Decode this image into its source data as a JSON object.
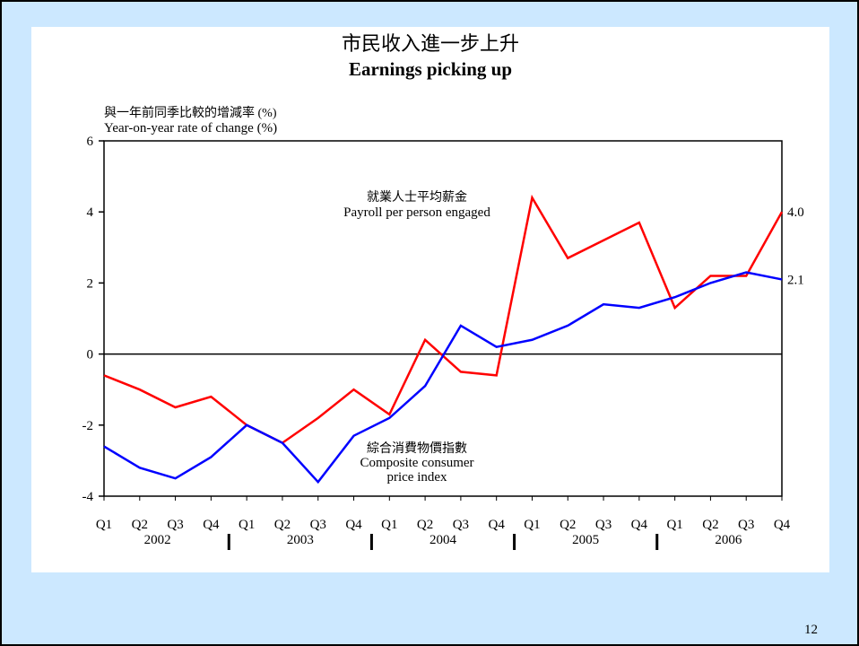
{
  "page_number": "12",
  "chart_data": {
    "type": "line",
    "title": "市民收入進一步上升",
    "subtitle": "Earnings picking up",
    "y_label_lines": [
      "與一年前同季比較的增減率  (%)",
      "Year-on-year rate of change (%)"
    ],
    "categories": [
      "Q1",
      "Q2",
      "Q3",
      "Q4",
      "Q1",
      "Q2",
      "Q3",
      "Q4",
      "Q1",
      "Q2",
      "Q3",
      "Q4",
      "Q1",
      "Q2",
      "Q3",
      "Q4",
      "Q1",
      "Q2",
      "Q3",
      "Q4"
    ],
    "years": [
      "2002",
      "2003",
      "2004",
      "2005",
      "2006"
    ],
    "ylim": [
      -4,
      6
    ],
    "yticks": [
      -4,
      -2,
      0,
      2,
      4,
      6
    ],
    "zero_line": 0,
    "series": [
      {
        "name_lines": [
          "就業人士平均薪金",
          "Payroll per person engaged"
        ],
        "color": "#ff0000",
        "values": [
          -0.6,
          -1.0,
          -1.5,
          -1.2,
          -2.0,
          -2.5,
          -1.8,
          -1.0,
          -1.7,
          0.4,
          -0.5,
          -0.6,
          4.4,
          2.7,
          3.2,
          3.7,
          1.3,
          2.2,
          2.2,
          4.0
        ],
        "value_labels": [
          null,
          null,
          null,
          null,
          null,
          null,
          null,
          null,
          null,
          null,
          null,
          null,
          null,
          null,
          null,
          null,
          null,
          null,
          null,
          "4.0"
        ]
      },
      {
        "name_lines": [
          "綜合消費物價指數",
          "Composite consumer",
          "price index"
        ],
        "color": "#0000ff",
        "values": [
          -2.6,
          -3.2,
          -3.5,
          -2.9,
          -2.0,
          -2.5,
          -3.6,
          -2.3,
          -1.8,
          -0.9,
          0.8,
          0.2,
          0.4,
          0.8,
          1.4,
          1.3,
          1.6,
          2.0,
          2.3,
          2.1
        ],
        "value_labels": [
          null,
          null,
          null,
          null,
          null,
          null,
          null,
          null,
          null,
          null,
          null,
          null,
          null,
          null,
          null,
          null,
          null,
          null,
          null,
          "2.1"
        ]
      }
    ]
  }
}
